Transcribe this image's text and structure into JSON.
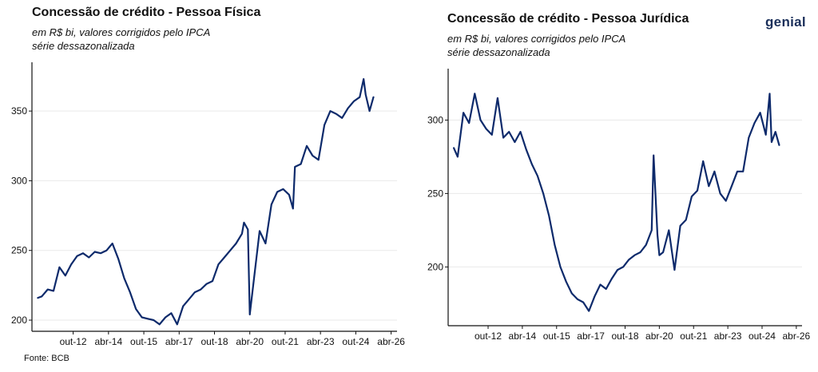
{
  "brand": {
    "logo_text": "genial"
  },
  "source": "Fonte: BCB",
  "colors": {
    "line": "#0d2a6b",
    "axis": "#111111",
    "grid": "#e9e9e9"
  },
  "chart_data": [
    {
      "type": "line",
      "title": "Concessão de crédito - Pessoa Física",
      "subtitle_lines": [
        "em R$ bi, valores corrigidos pelo IPCA",
        "série dessazonalizada"
      ],
      "xlabel": "",
      "ylabel": "",
      "x_ticks": [
        "out-12",
        "abr-14",
        "out-15",
        "abr-17",
        "out-18",
        "abr-20",
        "out-21",
        "abr-23",
        "out-24",
        "abr-26"
      ],
      "x_range": [
        "2011-01",
        "2026-07"
      ],
      "y_ticks": [
        200,
        250,
        300,
        350
      ],
      "ylim": [
        192,
        385
      ],
      "grid": "horizontal",
      "series": [
        {
          "x": [
            "2011-04",
            "2011-06",
            "2011-09",
            "2011-12",
            "2012-03",
            "2012-06",
            "2012-09",
            "2012-12",
            "2013-03",
            "2013-06",
            "2013-09",
            "2013-12",
            "2014-03",
            "2014-06",
            "2014-09",
            "2014-12",
            "2015-03",
            "2015-06",
            "2015-09",
            "2015-12",
            "2016-03",
            "2016-06",
            "2016-09",
            "2016-12",
            "2017-03",
            "2017-06",
            "2017-09",
            "2017-12",
            "2018-03",
            "2018-06",
            "2018-09",
            "2018-12",
            "2019-03",
            "2019-06",
            "2019-09",
            "2019-12",
            "2020-01",
            "2020-03",
            "2020-04",
            "2020-06",
            "2020-09",
            "2020-12",
            "2021-03",
            "2021-06",
            "2021-09",
            "2021-12",
            "2022-02",
            "2022-03",
            "2022-06",
            "2022-09",
            "2022-12",
            "2023-03",
            "2023-06",
            "2023-09",
            "2023-12",
            "2024-03",
            "2024-06",
            "2024-09",
            "2024-12",
            "2025-02",
            "2025-03",
            "2025-05",
            "2025-07"
          ],
          "values": [
            216,
            217,
            222,
            221,
            238,
            232,
            240,
            246,
            248,
            245,
            249,
            248,
            250,
            255,
            244,
            230,
            220,
            208,
            202,
            201,
            200,
            197,
            202,
            205,
            197,
            210,
            215,
            220,
            222,
            226,
            228,
            240,
            245,
            250,
            255,
            262,
            270,
            265,
            204,
            228,
            264,
            255,
            283,
            292,
            294,
            290,
            280,
            310,
            312,
            325,
            318,
            315,
            340,
            350,
            348,
            345,
            352,
            357,
            360,
            373,
            362,
            350,
            360
          ]
        }
      ]
    },
    {
      "type": "line",
      "title": "Concessão de crédito - Pessoa Jurídica",
      "subtitle_lines": [
        "em R$ bi, valores corrigidos pelo IPCA",
        "série dessazonalizada"
      ],
      "xlabel": "",
      "ylabel": "",
      "x_ticks": [
        "out-12",
        "abr-14",
        "out-15",
        "abr-17",
        "out-18",
        "abr-20",
        "out-21",
        "abr-23",
        "out-24",
        "abr-26"
      ],
      "x_range": [
        "2011-01",
        "2026-07"
      ],
      "y_ticks": [
        200,
        250,
        300
      ],
      "ylim": [
        160,
        335
      ],
      "grid": "horizontal",
      "series": [
        {
          "x": [
            "2011-04",
            "2011-06",
            "2011-09",
            "2011-12",
            "2012-03",
            "2012-06",
            "2012-09",
            "2012-12",
            "2013-03",
            "2013-06",
            "2013-09",
            "2013-12",
            "2014-03",
            "2014-06",
            "2014-09",
            "2014-12",
            "2015-03",
            "2015-06",
            "2015-09",
            "2015-12",
            "2016-03",
            "2016-06",
            "2016-09",
            "2016-12",
            "2017-03",
            "2017-06",
            "2017-09",
            "2017-12",
            "2018-03",
            "2018-06",
            "2018-09",
            "2018-12",
            "2019-03",
            "2019-06",
            "2019-09",
            "2019-12",
            "2020-01",
            "2020-03",
            "2020-04",
            "2020-06",
            "2020-09",
            "2020-12",
            "2021-03",
            "2021-06",
            "2021-09",
            "2021-12",
            "2022-03",
            "2022-06",
            "2022-09",
            "2022-12",
            "2023-03",
            "2023-06",
            "2023-09",
            "2023-12",
            "2024-03",
            "2024-06",
            "2024-09",
            "2024-12",
            "2025-02",
            "2025-03",
            "2025-05",
            "2025-07"
          ],
          "values": [
            281,
            275,
            305,
            298,
            318,
            300,
            294,
            290,
            315,
            288,
            292,
            285,
            292,
            280,
            270,
            262,
            250,
            235,
            215,
            200,
            190,
            182,
            178,
            176,
            170,
            180,
            188,
            185,
            192,
            198,
            200,
            205,
            208,
            210,
            215,
            225,
            276,
            222,
            208,
            210,
            225,
            198,
            228,
            232,
            248,
            252,
            272,
            255,
            265,
            250,
            245,
            255,
            265,
            265,
            288,
            298,
            305,
            290,
            318,
            285,
            292,
            283
          ]
        }
      ]
    }
  ]
}
